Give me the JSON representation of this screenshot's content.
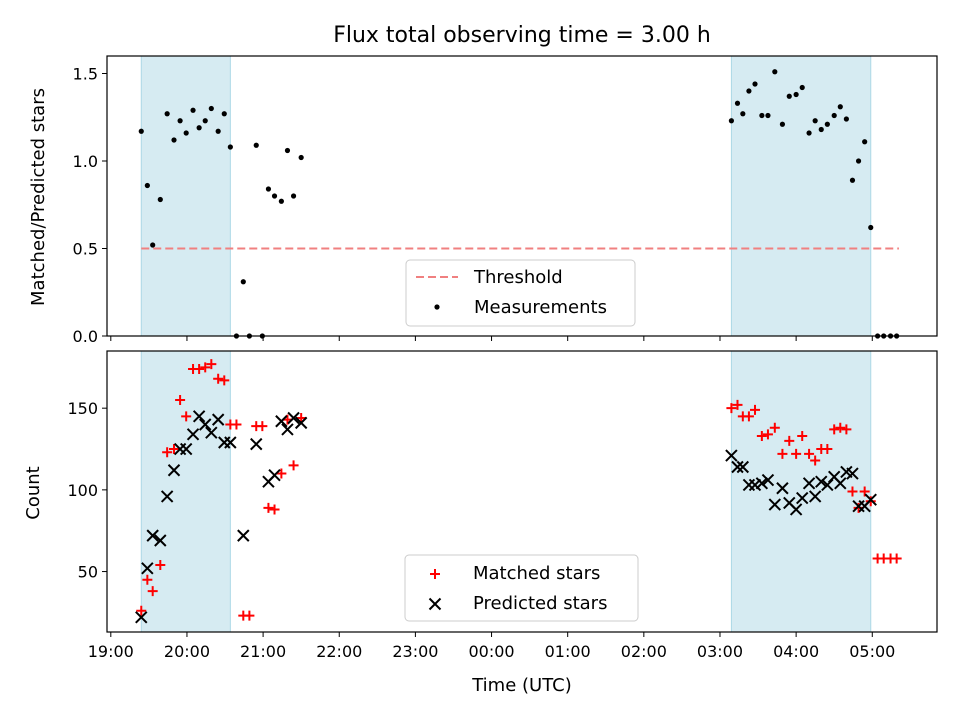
{
  "chart_data": [
    {
      "type": "scatter",
      "title": "Flux total observing time = 3.00 h",
      "ylabel": "Matched/Predicted stars",
      "xlabel": "",
      "ylim": [
        0,
        1.6
      ],
      "yticks": [
        0.0,
        0.5,
        1.0,
        1.5
      ],
      "ytick_labels": [
        "0.0",
        "0.5",
        "1.0",
        "1.5"
      ],
      "x_unit": "hours since 19:00 UTC",
      "xlim": [
        -0.05,
        10.85
      ],
      "shaded_intervals": [
        [
          0.4,
          1.57
        ],
        [
          8.15,
          9.98
        ]
      ],
      "threshold": {
        "name": "Threshold",
        "y": 0.5,
        "x_range": [
          0.4,
          10.35
        ],
        "color": "#f08080"
      },
      "legend": {
        "position": "lower-center",
        "entries": [
          "Threshold",
          "Measurements"
        ]
      },
      "series": [
        {
          "name": "Measurements",
          "color": "#000000",
          "marker": "dot",
          "x": [
            0.4,
            0.48,
            0.55,
            0.65,
            0.74,
            0.83,
            0.91,
            0.99,
            1.08,
            1.16,
            1.24,
            1.32,
            1.41,
            1.49,
            1.57,
            1.65,
            1.74,
            1.82,
            1.91,
            1.99,
            2.07,
            2.15,
            2.24,
            2.32,
            2.4,
            2.5,
            8.15,
            8.23,
            8.3,
            8.38,
            8.46,
            8.55,
            8.63,
            8.72,
            8.82,
            8.91,
            9.0,
            9.08,
            9.17,
            9.25,
            9.33,
            9.41,
            9.5,
            9.58,
            9.66,
            9.74,
            9.82,
            9.9,
            9.98,
            10.07,
            10.15,
            10.24,
            10.32
          ],
          "y": [
            1.17,
            0.86,
            0.52,
            0.78,
            1.27,
            1.12,
            1.23,
            1.16,
            1.29,
            1.19,
            1.23,
            1.3,
            1.17,
            1.27,
            1.08,
            0.0,
            0.31,
            0.0,
            1.09,
            0.0,
            0.84,
            0.8,
            0.77,
            1.06,
            0.8,
            1.02,
            1.23,
            1.33,
            1.27,
            1.4,
            1.44,
            1.26,
            1.26,
            1.51,
            1.21,
            1.37,
            1.38,
            1.42,
            1.16,
            1.23,
            1.18,
            1.21,
            1.26,
            1.31,
            1.24,
            0.89,
            1.0,
            1.11,
            0.62,
            0.0,
            0.0,
            0.0,
            0.0
          ]
        }
      ]
    },
    {
      "type": "scatter",
      "title": "",
      "ylabel": "Count",
      "xlabel": "Time (UTC)",
      "ylim": [
        13,
        185
      ],
      "yticks": [
        50,
        100,
        150
      ],
      "ytick_labels": [
        "50",
        "100",
        "150"
      ],
      "x_unit": "hours since 19:00 UTC",
      "xlim": [
        -0.05,
        10.85
      ],
      "xticks": [
        0,
        1,
        2,
        3,
        4,
        5,
        6,
        7,
        8,
        9,
        10
      ],
      "xtick_labels": [
        "19:00",
        "20:00",
        "21:00",
        "22:00",
        "23:00",
        "00:00",
        "01:00",
        "02:00",
        "03:00",
        "04:00",
        "05:00"
      ],
      "shaded_intervals": [
        [
          0.4,
          1.57
        ],
        [
          8.15,
          9.98
        ]
      ],
      "legend": {
        "position": "lower-center",
        "entries": [
          "Matched stars",
          "Predicted stars"
        ]
      },
      "series": [
        {
          "name": "Matched stars",
          "color": "#ff0000",
          "marker": "plus",
          "x": [
            0.4,
            0.48,
            0.55,
            0.65,
            0.74,
            0.83,
            0.91,
            0.99,
            1.08,
            1.16,
            1.24,
            1.32,
            1.41,
            1.49,
            1.57,
            1.65,
            1.74,
            1.82,
            1.91,
            1.99,
            2.07,
            2.15,
            2.24,
            2.32,
            2.4,
            2.5,
            8.15,
            8.23,
            8.3,
            8.38,
            8.46,
            8.55,
            8.63,
            8.72,
            8.82,
            8.91,
            9.0,
            9.08,
            9.17,
            9.25,
            9.33,
            9.41,
            9.5,
            9.58,
            9.66,
            9.74,
            9.82,
            9.9,
            9.98,
            10.07,
            10.15,
            10.24,
            10.32
          ],
          "y": [
            26,
            45,
            38,
            54,
            123,
            125,
            155,
            145,
            174,
            174,
            175,
            177,
            168,
            167,
            140,
            140,
            23,
            23,
            139,
            139,
            89,
            88,
            110,
            143,
            115,
            144,
            150,
            152,
            145,
            145,
            149,
            133,
            134,
            138,
            122,
            130,
            122,
            133,
            122,
            118,
            125,
            125,
            137,
            138,
            137,
            99,
            89,
            99,
            93,
            58,
            58,
            58,
            58
          ]
        },
        {
          "name": "Predicted stars",
          "color": "#000000",
          "marker": "x",
          "x": [
            0.4,
            0.48,
            0.55,
            0.65,
            0.74,
            0.83,
            0.91,
            0.99,
            1.08,
            1.16,
            1.24,
            1.32,
            1.41,
            1.49,
            1.57,
            1.74,
            1.91,
            2.07,
            2.15,
            2.24,
            2.32,
            2.4,
            2.5,
            8.15,
            8.23,
            8.3,
            8.38,
            8.46,
            8.55,
            8.63,
            8.72,
            8.82,
            8.91,
            9.0,
            9.08,
            9.17,
            9.25,
            9.33,
            9.41,
            9.5,
            9.58,
            9.66,
            9.74,
            9.82,
            9.9,
            9.98
          ],
          "y": [
            22,
            52,
            72,
            69,
            96,
            112,
            125,
            125,
            134,
            145,
            140,
            135,
            143,
            129,
            129,
            72,
            128,
            105,
            109,
            142,
            137,
            144,
            141,
            121,
            114,
            114,
            103,
            103,
            104,
            106,
            91,
            101,
            92,
            88,
            95,
            104,
            96,
            105,
            103,
            108,
            104,
            111,
            110,
            90,
            90,
            94
          ]
        }
      ]
    }
  ]
}
